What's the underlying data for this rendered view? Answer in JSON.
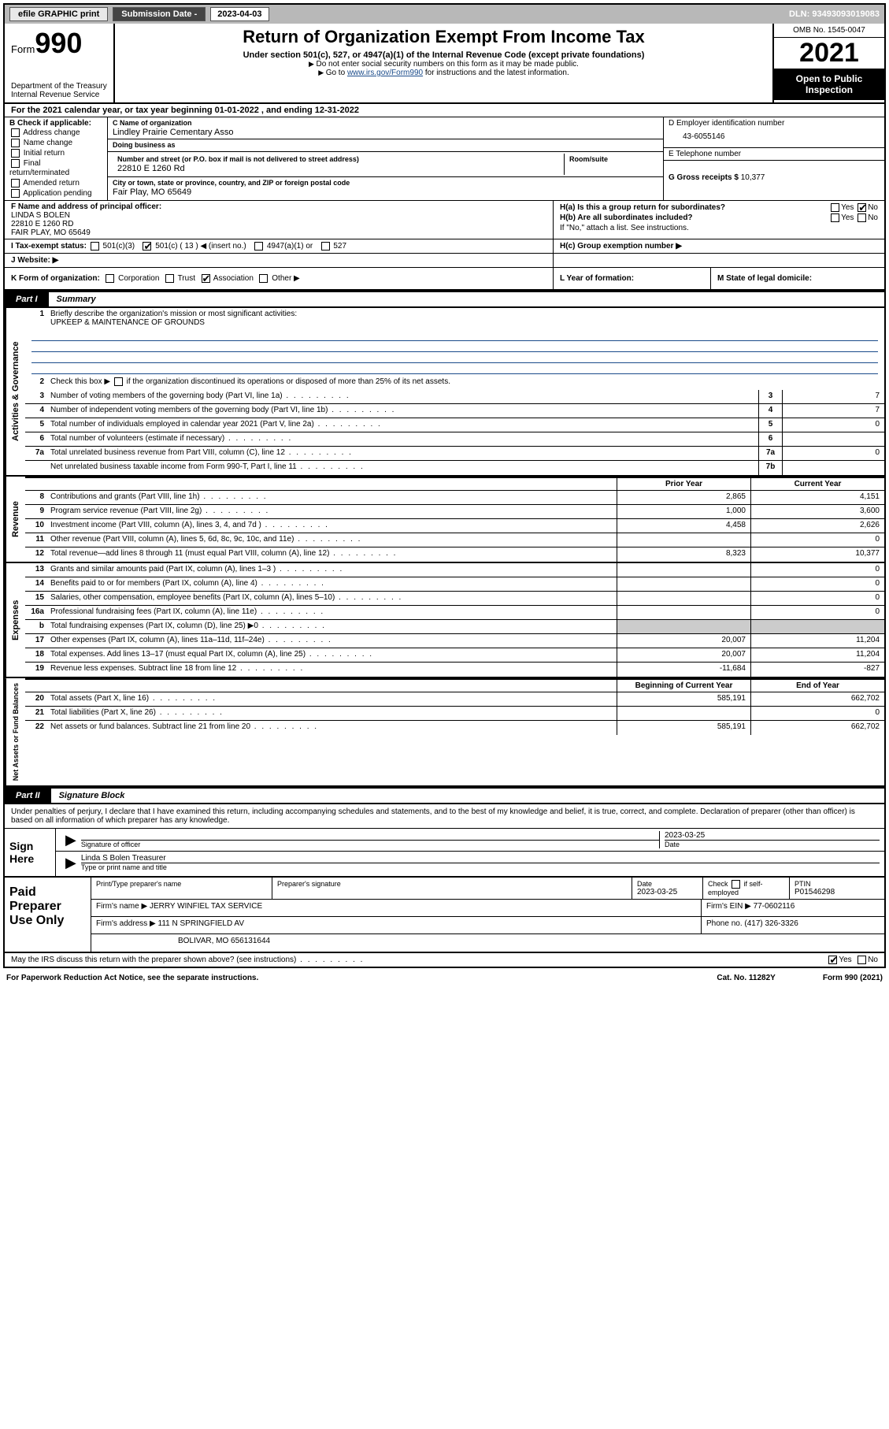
{
  "colors": {
    "bg": "#ffffff",
    "text": "#000000",
    "link": "#1a4b8a",
    "shade": "#cccccc",
    "topbar": "#b8b8b8"
  },
  "topbar": {
    "efile": "efile GRAPHIC print",
    "subdate_label": "Submission Date - ",
    "subdate": "2023-04-03",
    "dln_label": "DLN: ",
    "dln": "93493093019083"
  },
  "header": {
    "form_prefix": "Form",
    "form_no": "990",
    "dept": "Department of the Treasury",
    "irs": "Internal Revenue Service",
    "title": "Return of Organization Exempt From Income Tax",
    "sub": "Under section 501(c), 527, or 4947(a)(1) of the Internal Revenue Code (except private foundations)",
    "note1": "Do not enter social security numbers on this form as it may be made public.",
    "note2_pre": "Go to ",
    "note2_link": "www.irs.gov/Form990",
    "note2_post": " for instructions and the latest information.",
    "omb": "OMB No. 1545-0047",
    "year": "2021",
    "inspect": "Open to Public Inspection"
  },
  "rowA": "For the 2021 calendar year, or tax year beginning 01-01-2022   , and ending 12-31-2022",
  "colB": {
    "label": "B Check if applicable:",
    "items": [
      "Address change",
      "Name change",
      "Initial return",
      "Final return/terminated",
      "Amended return",
      "Application pending"
    ]
  },
  "colC": {
    "name_hint": "C Name of organization",
    "name": "Lindley Prairie Cementary Asso",
    "dba_hint": "Doing business as",
    "dba": "",
    "street_hint": "Number and street (or P.O. box if mail is not delivered to street address)",
    "room_hint": "Room/suite",
    "street": "22810 E 1260 Rd",
    "city_hint": "City or town, state or province, country, and ZIP or foreign postal code",
    "city": "Fair Play, MO  65649"
  },
  "colD": {
    "d_hint": "D Employer identification number",
    "ein": "43-6055146",
    "e_hint": "E Telephone number",
    "phone": "",
    "g_label": "G Gross receipts $ ",
    "g_val": "10,377"
  },
  "rowF": {
    "f_hint": "F Name and address of principal officer:",
    "name": "LINDA S BOLEN",
    "addr1": "22810 E 1260 RD",
    "addr2": "FAIR PLAY, MO  65649",
    "ha": "H(a)  Is this a group return for subordinates?",
    "hb": "H(b)  Are all subordinates included?",
    "hb_note": "If \"No,\" attach a list. See instructions.",
    "yes": "Yes",
    "no": "No"
  },
  "rowI": {
    "label": "I    Tax-exempt status:",
    "opts": [
      "501(c)(3)",
      "501(c) ( 13 ) ◀ (insert no.)",
      "4947(a)(1) or",
      "527"
    ],
    "checked": 1,
    "hc": "H(c)  Group exemption number ▶"
  },
  "rowJ": {
    "label": "J    Website: ▶"
  },
  "rowK": {
    "k": "K Form of organization:",
    "opts": [
      "Corporation",
      "Trust",
      "Association",
      "Other ▶"
    ],
    "checked": 2,
    "l": "L Year of formation:",
    "m": "M State of legal domicile:"
  },
  "partI": {
    "num": "Part I",
    "title": "Summary"
  },
  "summary": {
    "sideA": "Activities & Governance",
    "sideR": "Revenue",
    "sideE": "Expenses",
    "sideN": "Net Assets or Fund Balances",
    "l1": "Briefly describe the organization's mission or most significant activities:",
    "mission": "UPKEEP & MAINTENANCE OF GROUNDS",
    "l2": "Check this box ▶        if the organization discontinued its operations or disposed of more than 25% of its net assets.",
    "lines_ag": [
      {
        "n": "3",
        "t": "Number of voting members of the governing body (Part VI, line 1a)",
        "box": "3",
        "v": "7"
      },
      {
        "n": "4",
        "t": "Number of independent voting members of the governing body (Part VI, line 1b)",
        "box": "4",
        "v": "7"
      },
      {
        "n": "5",
        "t": "Total number of individuals employed in calendar year 2021 (Part V, line 2a)",
        "box": "5",
        "v": "0"
      },
      {
        "n": "6",
        "t": "Total number of volunteers (estimate if necessary)",
        "box": "6",
        "v": ""
      },
      {
        "n": "7a",
        "t": "Total unrelated business revenue from Part VIII, column (C), line 12",
        "box": "7a",
        "v": "0"
      },
      {
        "n": "",
        "t": "Net unrelated business taxable income from Form 990-T, Part I, line 11",
        "box": "7b",
        "v": ""
      }
    ],
    "hdr_prior": "Prior Year",
    "hdr_curr": "Current Year",
    "lines_rev": [
      {
        "n": "8",
        "t": "Contributions and grants (Part VIII, line 1h)",
        "p": "2,865",
        "c": "4,151"
      },
      {
        "n": "9",
        "t": "Program service revenue (Part VIII, line 2g)",
        "p": "1,000",
        "c": "3,600"
      },
      {
        "n": "10",
        "t": "Investment income (Part VIII, column (A), lines 3, 4, and 7d )",
        "p": "4,458",
        "c": "2,626"
      },
      {
        "n": "11",
        "t": "Other revenue (Part VIII, column (A), lines 5, 6d, 8c, 9c, 10c, and 11e)",
        "p": "",
        "c": "0"
      },
      {
        "n": "12",
        "t": "Total revenue—add lines 8 through 11 (must equal Part VIII, column (A), line 12)",
        "p": "8,323",
        "c": "10,377"
      }
    ],
    "lines_exp": [
      {
        "n": "13",
        "t": "Grants and similar amounts paid (Part IX, column (A), lines 1–3 )",
        "p": "",
        "c": "0"
      },
      {
        "n": "14",
        "t": "Benefits paid to or for members (Part IX, column (A), line 4)",
        "p": "",
        "c": "0"
      },
      {
        "n": "15",
        "t": "Salaries, other compensation, employee benefits (Part IX, column (A), lines 5–10)",
        "p": "",
        "c": "0"
      },
      {
        "n": "16a",
        "t": "Professional fundraising fees (Part IX, column (A), line 11e)",
        "p": "",
        "c": "0"
      },
      {
        "n": "b",
        "t": "Total fundraising expenses (Part IX, column (D), line 25) ▶0",
        "p": "shade",
        "c": "shade"
      },
      {
        "n": "17",
        "t": "Other expenses (Part IX, column (A), lines 11a–11d, 11f–24e)",
        "p": "20,007",
        "c": "11,204"
      },
      {
        "n": "18",
        "t": "Total expenses. Add lines 13–17 (must equal Part IX, column (A), line 25)",
        "p": "20,007",
        "c": "11,204"
      },
      {
        "n": "19",
        "t": "Revenue less expenses. Subtract line 18 from line 12",
        "p": "-11,684",
        "c": "-827"
      }
    ],
    "hdr_beg": "Beginning of Current Year",
    "hdr_end": "End of Year",
    "lines_na": [
      {
        "n": "20",
        "t": "Total assets (Part X, line 16)",
        "p": "585,191",
        "c": "662,702"
      },
      {
        "n": "21",
        "t": "Total liabilities (Part X, line 26)",
        "p": "",
        "c": "0"
      },
      {
        "n": "22",
        "t": "Net assets or fund balances. Subtract line 21 from line 20",
        "p": "585,191",
        "c": "662,702"
      }
    ]
  },
  "partII": {
    "num": "Part II",
    "title": "Signature Block"
  },
  "sig": {
    "intro": "Under penalties of perjury, I declare that I have examined this return, including accompanying schedules and statements, and to the best of my knowledge and belief, it is true, correct, and complete. Declaration of preparer (other than officer) is based on all information of which preparer has any knowledge.",
    "sign_here": "Sign Here",
    "sig_hint": "Signature of officer",
    "date_hint": "Date",
    "date": "2023-03-25",
    "name": "Linda S Bolen Treasurer",
    "name_hint": "Type or print name and title"
  },
  "prep": {
    "label": "Paid Preparer Use Only",
    "r1": {
      "c1_hint": "Print/Type preparer's name",
      "c1": "",
      "c2_hint": "Preparer's signature",
      "c2": "",
      "c3_hint": "Date",
      "c3": "2023-03-25",
      "c4": "Check        if self-employed",
      "c5_hint": "PTIN",
      "c5": "P01546298"
    },
    "r2": {
      "l": "Firm's name   ▶ ",
      "v": "JERRY WINFIEL TAX SERVICE",
      "r_l": "Firm's EIN ▶ ",
      "r_v": "77-0602116"
    },
    "r3": {
      "l": "Firm's address ▶ ",
      "v": "111 N SPRINGFIELD AV",
      "r_l": "Phone no. ",
      "r_v": "(417) 326-3326"
    },
    "r4": {
      "v": "BOLIVAR, MO  656131644"
    }
  },
  "footer": {
    "q": "May the IRS discuss this return with the preparer shown above? (see instructions)",
    "yes": "Yes",
    "no": "No",
    "pra": "For Paperwork Reduction Act Notice, see the separate instructions.",
    "cat": "Cat. No. 11282Y",
    "form": "Form 990 (2021)"
  }
}
